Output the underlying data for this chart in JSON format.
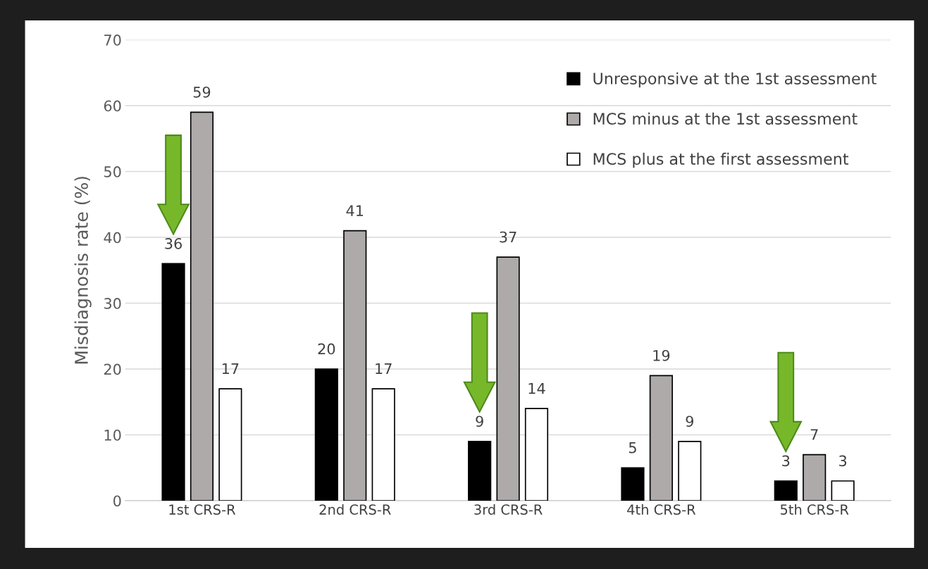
{
  "chart_data": {
    "type": "bar",
    "ylabel": "Misdiagnosis rate (%)",
    "categories": [
      "1st CRS-R",
      "2nd CRS-R",
      "3rd CRS-R",
      "4th CRS-R",
      "5th CRS-R"
    ],
    "series": [
      {
        "name": "Unresponsive at the 1st assessment",
        "color": "#000000",
        "values": [
          36,
          20,
          9,
          5,
          3
        ]
      },
      {
        "name": "MCS minus at the 1st assessment",
        "color": "#aeaaaa",
        "values": [
          59,
          41,
          37,
          19,
          7
        ]
      },
      {
        "name": "MCS plus at the first assessment",
        "color": "#ffffff",
        "values": [
          17,
          17,
          14,
          9,
          3
        ]
      }
    ],
    "ylim": [
      0,
      70
    ],
    "yticks": [
      0,
      10,
      20,
      30,
      40,
      50,
      60,
      70
    ],
    "grid": "y",
    "legend": "top right",
    "data_labels": true
  }
}
